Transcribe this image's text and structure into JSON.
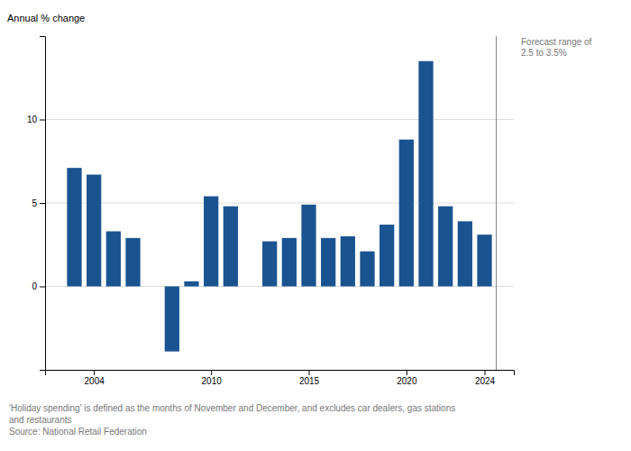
{
  "chart_data": {
    "type": "bar",
    "x": [
      2003,
      2004,
      2005,
      2006,
      2008,
      2009,
      2010,
      2011,
      2013,
      2014,
      2015,
      2016,
      2017,
      2018,
      2019,
      2020,
      2021,
      2022,
      2023,
      2024
    ],
    "values": [
      7.1,
      6.7,
      3.3,
      2.9,
      -3.9,
      0.3,
      5.4,
      4.8,
      2.7,
      2.9,
      4.9,
      2.9,
      3.0,
      2.1,
      3.7,
      8.8,
      13.5,
      4.8,
      3.9,
      3.1
    ],
    "color": "#1a5490",
    "ylabel": "Annual % change",
    "xlim": [
      2001.5,
      2025.5
    ],
    "xticks": [
      2004,
      2010,
      2015,
      2020,
      2024
    ],
    "ylim": [
      -5,
      15
    ],
    "yticks": [
      0,
      5,
      10
    ],
    "grid": true,
    "annotations": [
      {
        "x": 2024.6,
        "text": "Forecast range of\n2.5 to 3.5%"
      }
    ],
    "footnotes": [
      "'Holiday spending' is defined as the months of November and December, and excludes car dealers, gas stations",
      "and restaurants",
      "Source: National Retail Federation"
    ]
  }
}
